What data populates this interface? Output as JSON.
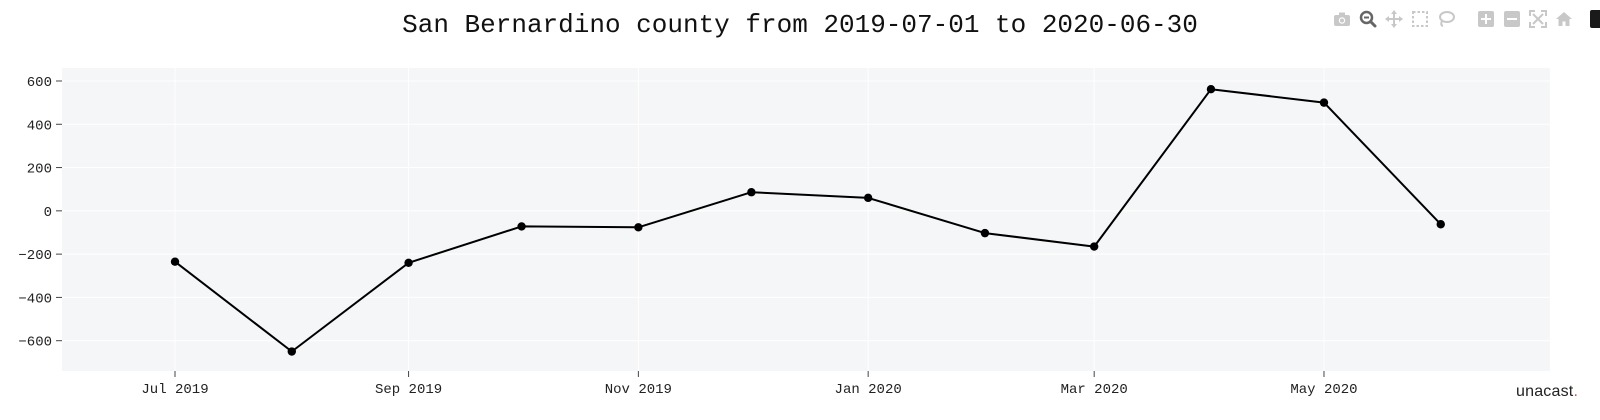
{
  "chart_data": {
    "type": "line",
    "title": "San Bernardino county from 2019-07-01 to 2020-06-30",
    "xlabel": "",
    "ylabel": "",
    "x": [
      "2019-07-01",
      "2019-08-01",
      "2019-09-01",
      "2019-10-01",
      "2019-11-01",
      "2019-12-01",
      "2020-01-01",
      "2020-02-01",
      "2020-03-01",
      "2020-04-01",
      "2020-05-01",
      "2020-06-01"
    ],
    "series": [
      {
        "values": [
          -235,
          -650,
          -240,
          -72,
          -76,
          86,
          60,
          -103,
          -165,
          562,
          500,
          -62
        ]
      }
    ],
    "x_ticks": [
      {
        "date": "2019-07-01",
        "label": "Jul 2019"
      },
      {
        "date": "2019-09-01",
        "label": "Sep 2019"
      },
      {
        "date": "2019-11-01",
        "label": "Nov 2019"
      },
      {
        "date": "2020-01-01",
        "label": "Jan 2020"
      },
      {
        "date": "2020-03-01",
        "label": "Mar 2020"
      },
      {
        "date": "2020-05-01",
        "label": "May 2020"
      }
    ],
    "y_ticks": [
      600,
      400,
      200,
      0,
      -200,
      -400,
      -600
    ],
    "y_tick_labels": [
      "600",
      "400",
      "200",
      "0",
      "−200",
      "−400",
      "−600"
    ],
    "xlim": [
      "2019-06-01",
      "2020-06-30"
    ],
    "ylim": [
      -740,
      660
    ],
    "grid": true,
    "legend": "none",
    "colors": {
      "line": "#000000",
      "plot_bg": "#f5f6f8",
      "grid": "#ffffff"
    }
  },
  "modebar": {
    "icons": [
      "camera-icon",
      "zoom-icon",
      "pan-icon",
      "box-select-icon",
      "lasso-icon",
      "zoom-in-icon",
      "zoom-out-icon",
      "autoscale-icon",
      "reset-axes-icon"
    ]
  },
  "brand": {
    "name": "unacast",
    "dot": "."
  }
}
